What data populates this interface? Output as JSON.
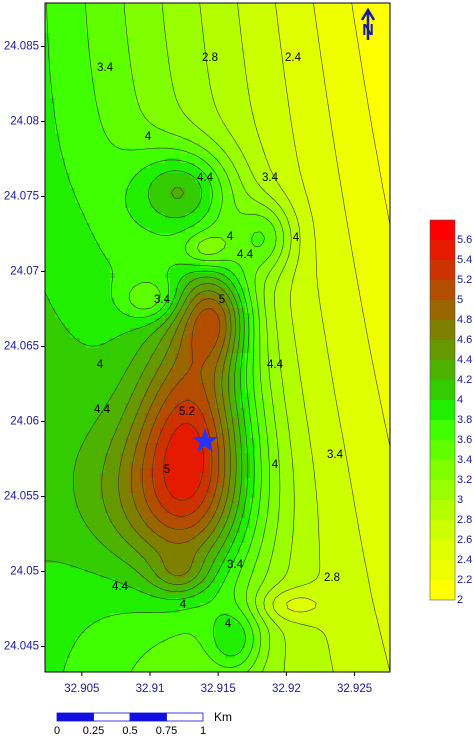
{
  "chart_data": {
    "type": "contour",
    "xlim": [
      32.9023,
      32.9276
    ],
    "ylim": [
      24.0433,
      24.0879
    ],
    "xticks": [
      32.905,
      32.91,
      32.915,
      32.92,
      32.925
    ],
    "yticks": [
      24.045,
      24.05,
      24.055,
      24.06,
      24.065,
      24.07,
      24.075,
      24.08,
      24.085
    ],
    "contour_labels": [
      3.4,
      2.8,
      2.4,
      4,
      4.4,
      3.4,
      4,
      4.4,
      4,
      3.4,
      5,
      4,
      4.4,
      4.4,
      5.2,
      4,
      3.4,
      5,
      3.4,
      2.8,
      4.4,
      4,
      4
    ],
    "colorbar": {
      "levels": [
        2,
        2.2,
        2.4,
        2.6,
        2.8,
        3,
        3.2,
        3.4,
        3.6,
        3.8,
        4,
        4.2,
        4.4,
        4.6,
        4.8,
        5,
        5.2,
        5.4,
        5.6,
        5.8
      ],
      "colors": [
        "#ffff00",
        "#f0ff00",
        "#e0ff00",
        "#ccff00",
        "#b3ff00",
        "#99ff00",
        "#80ff00",
        "#60ff00",
        "#40ff00",
        "#20f000",
        "#33cc00",
        "#4db300",
        "#669900",
        "#808000",
        "#996600",
        "#b34d00",
        "#cc3300",
        "#e61a00",
        "#ff0000"
      ],
      "ticks": [
        2,
        2.2,
        2.4,
        2.6,
        2.8,
        3,
        3.2,
        3.4,
        3.6,
        3.8,
        4,
        4.2,
        4.4,
        4.6,
        4.8,
        5,
        5.2,
        5.4,
        5.6
      ]
    },
    "scale_bar": {
      "ticks": [
        0,
        0.25,
        0.5,
        0.75,
        1
      ],
      "unit": "Km"
    },
    "north": "N"
  }
}
